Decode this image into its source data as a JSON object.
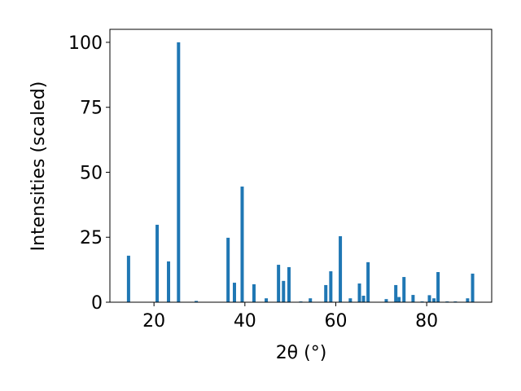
{
  "chart_data": {
    "type": "bar",
    "x_label": "2θ (°)",
    "y_label": "Intensities (scaled)",
    "color": "#1f77b4",
    "x": [
      14.4,
      20.7,
      23.2,
      25.4,
      29.3,
      36.3,
      37.7,
      39.4,
      42.0,
      44.7,
      47.4,
      48.5,
      49.7,
      52.3,
      54.4,
      57.8,
      58.9,
      61.0,
      63.2,
      65.2,
      66.1,
      67.1,
      71.1,
      73.2,
      73.9,
      75.0,
      77.0,
      79.0,
      80.6,
      81.6,
      82.5,
      84.5,
      86.3,
      89.0,
      90.1
    ],
    "values": [
      17.9,
      29.8,
      15.7,
      100,
      0.5,
      24.8,
      7.5,
      44.5,
      6.9,
      1.5,
      14.4,
      8.2,
      13.5,
      0.3,
      1.5,
      6.6,
      11.9,
      25.4,
      1.5,
      7.2,
      2.5,
      15.4,
      1.2,
      6.6,
      2,
      9.7,
      2.8,
      0.3,
      2.7,
      1.5,
      11.6,
      0.3,
      0.3,
      1.5,
      11.0
    ],
    "xlim": [
      10.3,
      94.3
    ],
    "ylim": [
      0,
      105
    ],
    "xticks": [
      20,
      40,
      60,
      80
    ],
    "yticks": [
      0,
      25,
      50,
      75,
      100
    ]
  }
}
